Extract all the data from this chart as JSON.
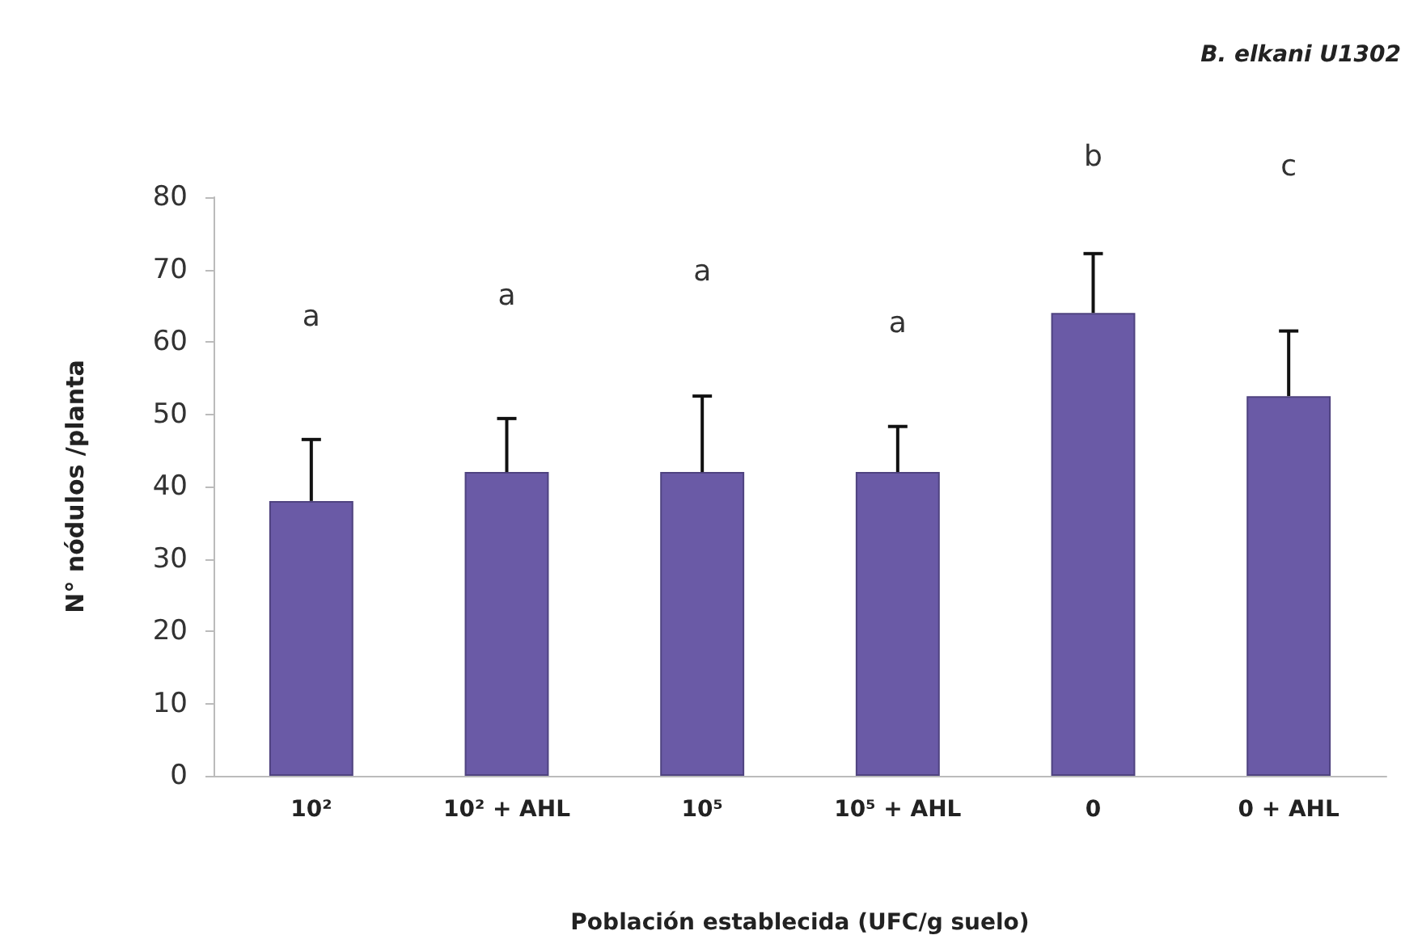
{
  "chart_data": {
    "type": "bar",
    "title": "B. elkani U1302",
    "xlabel": "Población establecida (UFC/g suelo)",
    "ylabel": "N° nódulos /planta",
    "categories": [
      "10²",
      "10² + AHL",
      "10⁵",
      "10⁵ + AHL",
      "0",
      "0 + AHL"
    ],
    "values": [
      38,
      42,
      42,
      42,
      64,
      52.5
    ],
    "color": "#6a5aa6",
    "errors": [
      [
        38,
        46.5
      ],
      [
        42,
        49.4
      ],
      [
        42,
        52.5
      ],
      [
        42,
        48.3
      ],
      [
        64,
        72.2
      ],
      [
        52.5,
        61.5
      ]
    ],
    "ylim": [
      0,
      80
    ],
    "yticks": [
      0,
      10,
      20,
      30,
      40,
      50,
      60,
      70,
      80
    ],
    "grid": false,
    "annotations": [
      "a",
      "a",
      "a",
      "a",
      "b",
      "c"
    ]
  }
}
